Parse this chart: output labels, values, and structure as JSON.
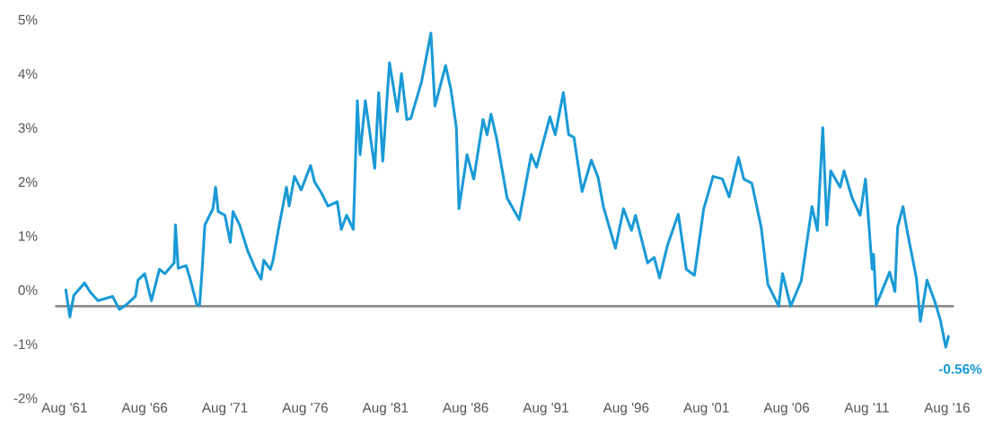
{
  "chart_data": {
    "type": "line",
    "x": [
      "1961-09",
      "1961-12",
      "1962-03",
      "1962-11",
      "1963-03",
      "1963-09",
      "1964-08",
      "1965-01",
      "1965-06",
      "1966-01",
      "1966-03",
      "1966-08",
      "1967-01",
      "1967-07",
      "1967-11",
      "1968-06",
      "1968-07",
      "1968-09",
      "1969-03",
      "1969-06",
      "1969-11",
      "1970-01",
      "1970-03",
      "1970-05",
      "1970-11",
      "1971-01",
      "1971-03",
      "1971-08",
      "1971-12",
      "1972-02",
      "1972-07",
      "1973-01",
      "1973-07",
      "1973-11",
      "1974-01",
      "1974-06",
      "1974-08",
      "1974-12",
      "1975-03",
      "1975-06",
      "1975-08",
      "1975-12",
      "1976-05",
      "1976-12",
      "1977-03",
      "1977-08",
      "1978-01",
      "1978-08",
      "1978-11",
      "1979-03",
      "1979-08",
      "1979-11",
      "1980-01",
      "1980-05",
      "1980-12",
      "1981-03",
      "1981-06",
      "1981-11",
      "1982-05",
      "1982-08",
      "1982-12",
      "1983-03",
      "1983-11",
      "1984-06",
      "1984-09",
      "1985-05",
      "1985-09",
      "1986-01",
      "1986-03",
      "1986-09",
      "1987-02",
      "1987-09",
      "1987-12",
      "1988-03",
      "1988-07",
      "1989-03",
      "1989-12",
      "1990-09",
      "1991-01",
      "1991-11",
      "1992-03",
      "1992-09",
      "1993-01",
      "1993-05",
      "1993-11",
      "1994-06",
      "1994-11",
      "1995-03",
      "1995-12",
      "1996-06",
      "1996-12",
      "1997-03",
      "1997-12",
      "1998-05",
      "1998-09",
      "1999-03",
      "1999-11",
      "2000-05",
      "2000-11",
      "2001-06",
      "2002-01",
      "2002-08",
      "2003-01",
      "2003-08",
      "2003-12",
      "2004-06",
      "2005-01",
      "2005-06",
      "2006-02",
      "2006-05",
      "2006-11",
      "2007-07",
      "2008-03",
      "2008-07",
      "2008-11",
      "2009-02",
      "2009-05",
      "2009-12",
      "2010-03",
      "2010-09",
      "2011-03",
      "2011-07",
      "2011-12",
      "2012-01",
      "2012-03",
      "2013-01",
      "2013-05",
      "2013-07",
      "2013-11",
      "2014-02",
      "2014-09",
      "2014-12",
      "2015-05",
      "2015-11",
      "2016-03",
      "2016-07",
      "2016-09"
    ],
    "series": [
      {
        "color": "#1a9ad6",
        "values": [
          0.0,
          -0.5,
          -0.1,
          0.13,
          -0.03,
          -0.2,
          -0.12,
          -0.36,
          -0.28,
          -0.12,
          0.18,
          0.3,
          -0.2,
          0.38,
          0.3,
          0.5,
          1.2,
          0.4,
          0.45,
          0.2,
          -0.28,
          -0.28,
          0.38,
          1.2,
          1.5,
          1.9,
          1.45,
          1.38,
          0.88,
          1.45,
          1.2,
          0.72,
          0.38,
          0.2,
          0.55,
          0.38,
          0.55,
          1.12,
          1.5,
          1.9,
          1.55,
          2.1,
          1.85,
          2.3,
          2.0,
          1.8,
          1.55,
          1.63,
          1.12,
          1.38,
          1.12,
          3.5,
          2.5,
          3.5,
          2.25,
          3.65,
          2.38,
          4.2,
          3.3,
          4.0,
          3.15,
          3.17,
          3.85,
          4.75,
          3.4,
          4.15,
          3.7,
          3.0,
          1.5,
          2.5,
          2.05,
          3.15,
          2.87,
          3.25,
          2.82,
          1.7,
          1.3,
          2.5,
          2.27,
          3.2,
          2.87,
          3.65,
          2.87,
          2.82,
          1.82,
          2.4,
          2.08,
          1.54,
          0.77,
          1.5,
          1.1,
          1.38,
          0.5,
          0.6,
          0.22,
          0.83,
          1.4,
          0.38,
          0.27,
          1.5,
          2.1,
          2.05,
          1.72,
          2.45,
          2.05,
          1.97,
          1.15,
          0.1,
          -0.3,
          0.3,
          -0.3,
          0.17,
          1.54,
          1.1,
          3.0,
          1.2,
          2.2,
          1.9,
          2.2,
          1.7,
          1.38,
          2.05,
          0.38,
          0.66,
          -0.28,
          0.33,
          -0.03,
          1.16,
          1.54,
          1.1,
          0.22,
          -0.58,
          0.18,
          -0.23,
          -0.56,
          -1.06,
          -0.86
        ]
      }
    ],
    "xlim": [
      "1961-01",
      "2017-01"
    ],
    "xticks": [
      {
        "value": "1961-08",
        "label": "Aug '61"
      },
      {
        "value": "1966-08",
        "label": "Aug '66"
      },
      {
        "value": "1971-08",
        "label": "Aug '71"
      },
      {
        "value": "1976-08",
        "label": "Aug '76"
      },
      {
        "value": "1981-08",
        "label": "Aug '81"
      },
      {
        "value": "1986-08",
        "label": "Aug '86"
      },
      {
        "value": "1991-08",
        "label": "Aug '91"
      },
      {
        "value": "1996-08",
        "label": "Aug '96"
      },
      {
        "value": "2001-08",
        "label": "Aug '01"
      },
      {
        "value": "2006-08",
        "label": "Aug '06"
      },
      {
        "value": "2011-08",
        "label": "Aug '11"
      },
      {
        "value": "2016-08",
        "label": "Aug '16"
      }
    ],
    "ylim": [
      -2,
      5
    ],
    "yticks": [
      {
        "value": -2,
        "label": "-2%"
      },
      {
        "value": -1,
        "label": "-1%"
      },
      {
        "value": 0,
        "label": "0%"
      },
      {
        "value": 1,
        "label": "1%"
      },
      {
        "value": 2,
        "label": "2%"
      },
      {
        "value": 3,
        "label": "3%"
      },
      {
        "value": 4,
        "label": "4%"
      },
      {
        "value": 5,
        "label": "5%"
      }
    ],
    "ref_lines": [
      {
        "axis": "y",
        "value": -0.3,
        "color": "#8c8c8c"
      }
    ],
    "annotations": [
      "-0.56%"
    ],
    "grid": false,
    "legend": false,
    "marker": "none",
    "line_style": "solid"
  }
}
